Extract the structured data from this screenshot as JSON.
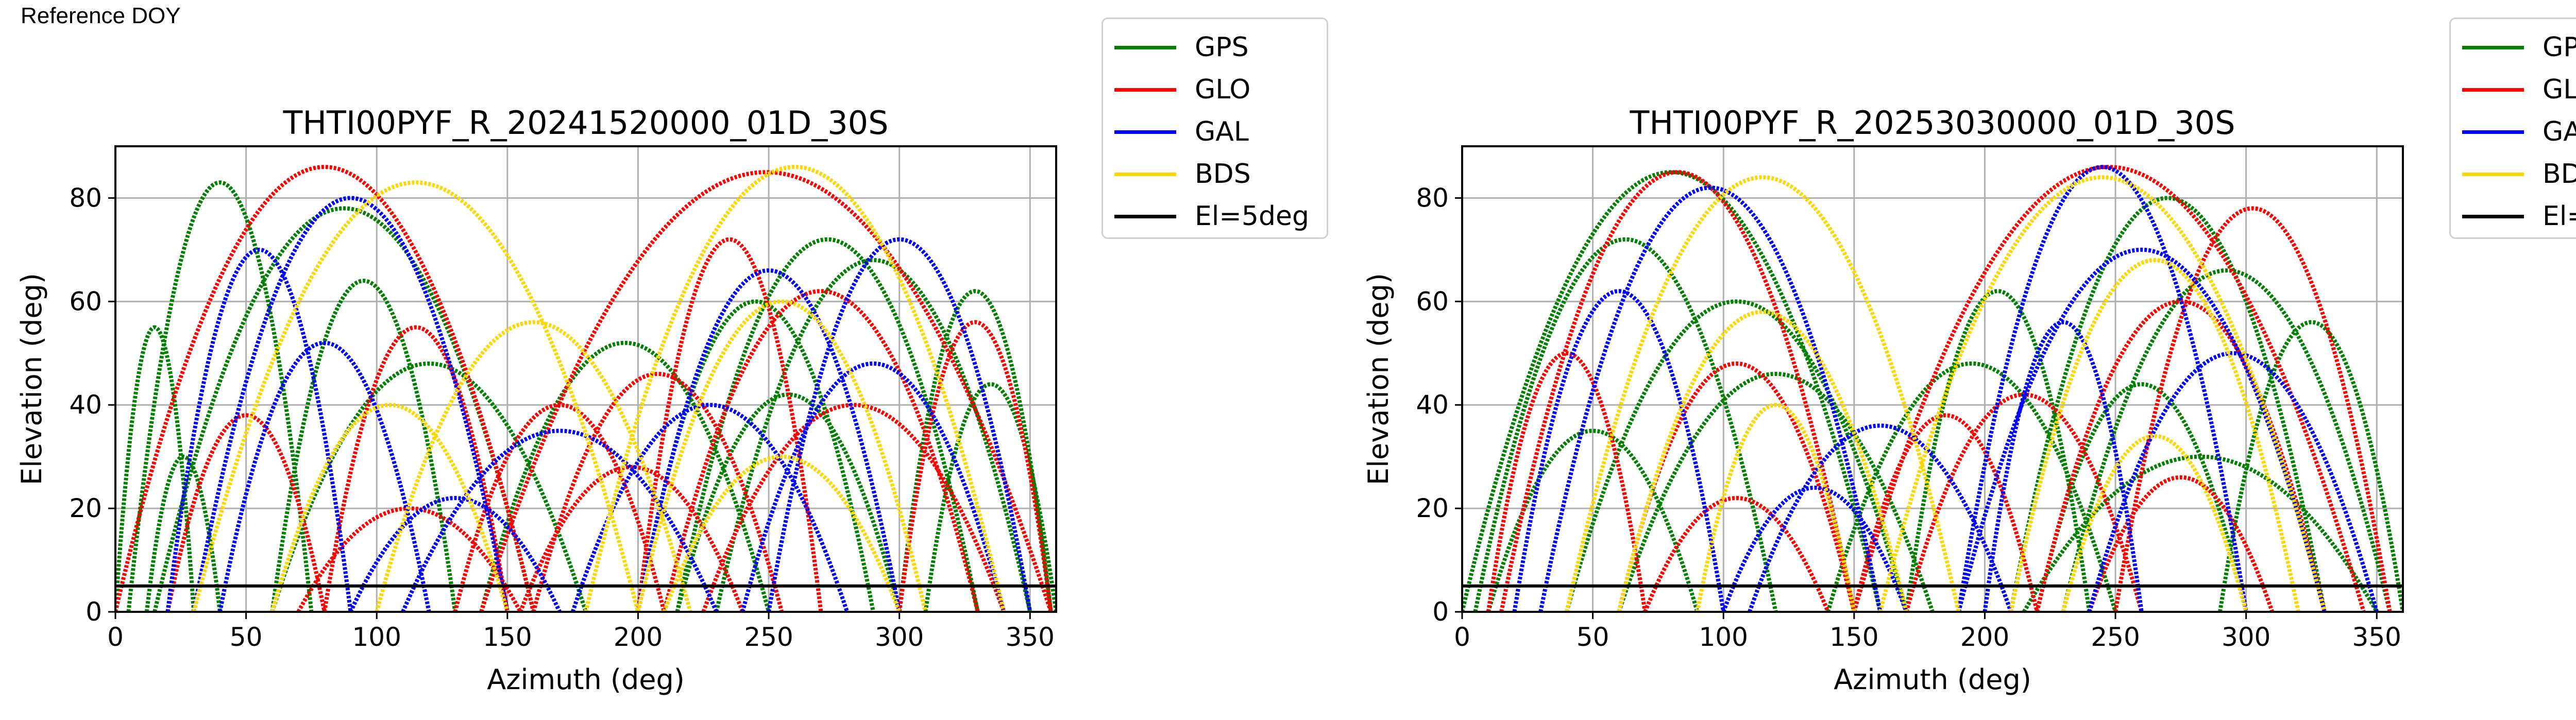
{
  "page": {
    "label": "Reference DOY"
  },
  "colors": {
    "GPS": "#008000",
    "GLO": "#ff0000",
    "GAL": "#0000ff",
    "BDS": "#ffd700",
    "El=5deg": "#000000"
  },
  "legend": [
    "GPS",
    "GLO",
    "GAL",
    "BDS",
    "El=5deg"
  ],
  "chart_data": [
    {
      "type": "scatter",
      "title": "THTI00PYF_R_20241520000_01D_30S",
      "xlabel": "Azimuth (deg)",
      "ylabel": "Elevation (deg)",
      "xlim": [
        0,
        360
      ],
      "ylim": [
        0,
        90
      ],
      "xticks": [
        0,
        50,
        100,
        150,
        200,
        250,
        300,
        350
      ],
      "yticks": [
        0,
        20,
        40,
        60,
        80
      ],
      "grid": true,
      "legend_position": "outside-right",
      "reference_line": {
        "name": "El=5deg",
        "y": 5
      },
      "series": [
        {
          "name": "GPS",
          "arcs": [
            [
              5,
              75,
              83
            ],
            [
              15,
              160,
              78
            ],
            [
              60,
              130,
              64
            ],
            [
              140,
              250,
              52
            ],
            [
              215,
              330,
              72
            ],
            [
              230,
              350,
              68
            ],
            [
              300,
              358,
              62
            ],
            [
              12,
              40,
              30
            ],
            [
              215,
              300,
              42
            ],
            [
              60,
              180,
              48
            ],
            [
              310,
              360,
              44
            ],
            [
              200,
              290,
              60
            ],
            [
              0,
              30,
              55
            ]
          ]
        },
        {
          "name": "GLO",
          "arcs": [
            [
              0,
              160,
              86
            ],
            [
              140,
              358,
              85
            ],
            [
              130,
              210,
              40
            ],
            [
              155,
              240,
              28
            ],
            [
              160,
              255,
              46
            ],
            [
              300,
              358,
              56
            ],
            [
              70,
              155,
              20
            ],
            [
              210,
              330,
              62
            ],
            [
              80,
              150,
              55
            ],
            [
              225,
              340,
              40
            ],
            [
              20,
              80,
              38
            ],
            [
              200,
              270,
              72
            ]
          ]
        },
        {
          "name": "GAL",
          "arcs": [
            [
              30,
              150,
              80
            ],
            [
              200,
              300,
              66
            ],
            [
              110,
              230,
              35
            ],
            [
              240,
              340,
              48
            ],
            [
              40,
              120,
              52
            ],
            [
              175,
              280,
              40
            ],
            [
              90,
              170,
              22
            ],
            [
              20,
              90,
              70
            ],
            [
              250,
              350,
              72
            ]
          ]
        },
        {
          "name": "BDS",
          "arcs": [
            [
              30,
              200,
              83
            ],
            [
              180,
              340,
              86
            ],
            [
              100,
              220,
              56
            ],
            [
              200,
              310,
              60
            ],
            [
              60,
              150,
              40
            ],
            [
              210,
              300,
              30
            ]
          ]
        }
      ]
    },
    {
      "type": "scatter",
      "title": "THTI00PYF_R_20253030000_01D_30S",
      "xlabel": "Azimuth (deg)",
      "ylabel": "Elevation (deg)",
      "xlim": [
        0,
        360
      ],
      "ylim": [
        0,
        90
      ],
      "xticks": [
        0,
        50,
        100,
        150,
        200,
        250,
        300,
        350
      ],
      "yticks": [
        0,
        20,
        40,
        60,
        80
      ],
      "grid": true,
      "legend_position": "outside-right",
      "reference_line": {
        "name": "El=5deg",
        "y": 5
      },
      "series": [
        {
          "name": "GPS",
          "arcs": [
            [
              0,
              160,
              85
            ],
            [
              5,
              120,
              72
            ],
            [
              40,
              170,
              60
            ],
            [
              140,
              250,
              48
            ],
            [
              210,
              330,
              80
            ],
            [
              230,
              355,
              66
            ],
            [
              10,
              90,
              35
            ],
            [
              220,
              300,
              44
            ],
            [
              290,
              360,
              56
            ],
            [
              60,
              180,
              46
            ],
            [
              170,
              240,
              62
            ],
            [
              215,
              350,
              30
            ]
          ]
        },
        {
          "name": "GLO",
          "arcs": [
            [
              15,
              150,
              85
            ],
            [
              150,
              345,
              86
            ],
            [
              150,
              220,
              38
            ],
            [
              60,
              150,
              48
            ],
            [
              170,
              260,
              42
            ],
            [
              220,
              330,
              60
            ],
            [
              240,
              310,
              26
            ],
            [
              70,
              140,
              22
            ],
            [
              10,
              70,
              50
            ],
            [
              250,
              355,
              78
            ]
          ]
        },
        {
          "name": "GAL",
          "arcs": [
            [
              30,
              160,
              82
            ],
            [
              190,
              300,
              86
            ],
            [
              190,
              330,
              70
            ],
            [
              110,
              210,
              36
            ],
            [
              20,
              100,
              62
            ],
            [
              240,
              350,
              50
            ],
            [
              100,
              170,
              24
            ],
            [
              200,
              260,
              56
            ]
          ]
        },
        {
          "name": "BDS",
          "arcs": [
            [
              40,
              190,
              84
            ],
            [
              160,
              330,
              84
            ],
            [
              60,
              170,
              58
            ],
            [
              210,
              320,
              68
            ],
            [
              90,
              150,
              40
            ],
            [
              230,
              300,
              34
            ]
          ]
        }
      ]
    }
  ]
}
